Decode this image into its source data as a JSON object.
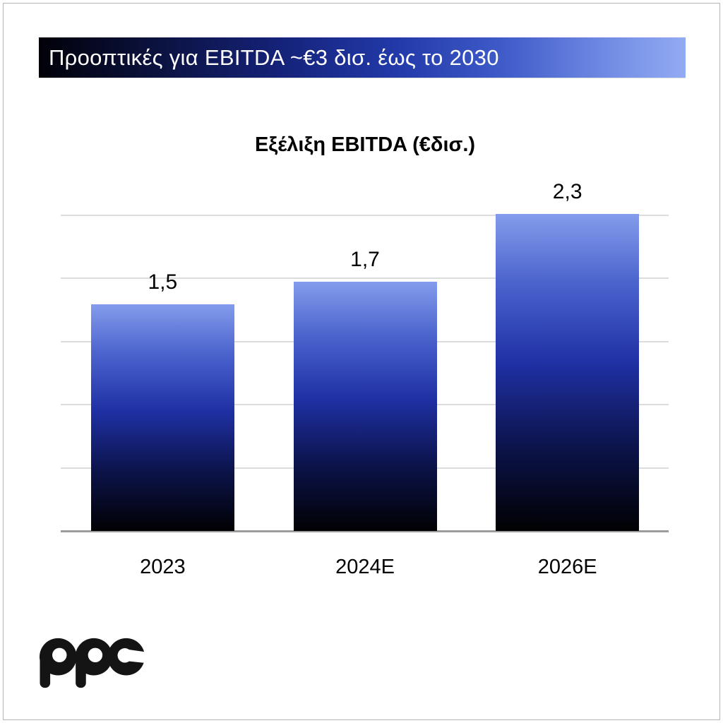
{
  "banner": {
    "title": "Προοπτικές για EBITDA ~€3 δισ. έως το 2030",
    "text_color": "#ffffff",
    "gradient": [
      "#010109",
      "#15237b",
      "#2239a8",
      "#93abf3"
    ]
  },
  "chart_data": {
    "type": "bar",
    "title": "Εξέλιξη EBITDA (€δισ.)",
    "categories": [
      "2023",
      "2024E",
      "2026E"
    ],
    "values": [
      1.5,
      1.7,
      2.3
    ],
    "value_labels": [
      "1,5",
      "1,7",
      "2,3"
    ],
    "xlabel": "",
    "ylabel": "",
    "unit": "€ δισ.",
    "ylim": [
      -0.5,
      2.3
    ],
    "grid": true,
    "gridline_count": 6,
    "legend": false,
    "bar_gradient_top": "#849ceb",
    "bar_gradient_mid": "#1f30a4",
    "bar_gradient_bottom": "#010103",
    "gridline_color": "#dcdcdc",
    "axis_color": "#9c9c9c",
    "label_color": "#000000"
  },
  "logo": {
    "text": "ppc",
    "color": "#141414"
  }
}
